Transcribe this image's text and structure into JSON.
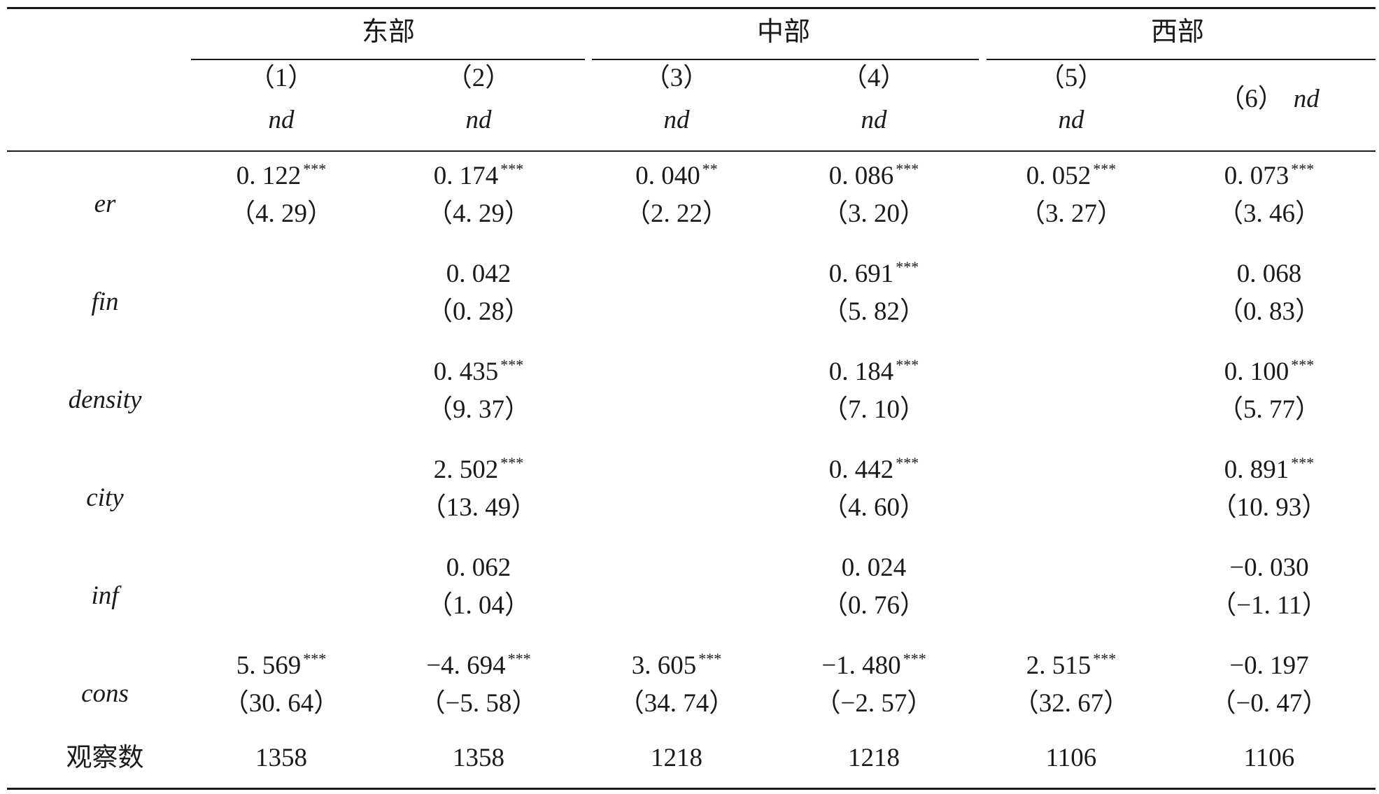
{
  "groups": [
    "东部",
    "中部",
    "西部"
  ],
  "columns": [
    {
      "num": "（1）",
      "var": "nd"
    },
    {
      "num": "（2）",
      "var": "nd"
    },
    {
      "num": "（3）",
      "var": "nd"
    },
    {
      "num": "（4）",
      "var": "nd"
    },
    {
      "num": "（5）",
      "var": "nd"
    },
    {
      "num": "（6）",
      "var": "nd"
    }
  ],
  "rows": [
    {
      "name": "er",
      "cells": [
        {
          "coef": "0. 122",
          "stars": "***",
          "t": "（4. 29）"
        },
        {
          "coef": "0. 174",
          "stars": "***",
          "t": "（4. 29）"
        },
        {
          "coef": "0. 040",
          "stars": "**",
          "t": "（2. 22）"
        },
        {
          "coef": "0. 086",
          "stars": "***",
          "t": "（3. 20）"
        },
        {
          "coef": "0. 052",
          "stars": "***",
          "t": "（3. 27）"
        },
        {
          "coef": "0. 073",
          "stars": "***",
          "t": "（3. 46）"
        }
      ]
    },
    {
      "name": "fin",
      "cells": [
        {
          "coef": "",
          "stars": "",
          "t": ""
        },
        {
          "coef": "0. 042",
          "stars": "",
          "t": "（0. 28）"
        },
        {
          "coef": "",
          "stars": "",
          "t": ""
        },
        {
          "coef": "0. 691",
          "stars": "***",
          "t": "（5. 82）"
        },
        {
          "coef": "",
          "stars": "",
          "t": ""
        },
        {
          "coef": "0. 068",
          "stars": "",
          "t": "（0. 83）"
        }
      ]
    },
    {
      "name": "density",
      "cells": [
        {
          "coef": "",
          "stars": "",
          "t": ""
        },
        {
          "coef": "0. 435",
          "stars": "***",
          "t": "（9. 37）"
        },
        {
          "coef": "",
          "stars": "",
          "t": ""
        },
        {
          "coef": "0. 184",
          "stars": "***",
          "t": "（7. 10）"
        },
        {
          "coef": "",
          "stars": "",
          "t": ""
        },
        {
          "coef": "0. 100",
          "stars": "***",
          "t": "（5. 77）"
        }
      ]
    },
    {
      "name": "city",
      "cells": [
        {
          "coef": "",
          "stars": "",
          "t": ""
        },
        {
          "coef": "2. 502",
          "stars": "***",
          "t": "（13. 49）"
        },
        {
          "coef": "",
          "stars": "",
          "t": ""
        },
        {
          "coef": "0. 442",
          "stars": "***",
          "t": "（4. 60）"
        },
        {
          "coef": "",
          "stars": "",
          "t": ""
        },
        {
          "coef": "0. 891",
          "stars": "***",
          "t": "（10. 93）"
        }
      ]
    },
    {
      "name": "inf",
      "cells": [
        {
          "coef": "",
          "stars": "",
          "t": ""
        },
        {
          "coef": "0. 062",
          "stars": "",
          "t": "（1. 04）"
        },
        {
          "coef": "",
          "stars": "",
          "t": ""
        },
        {
          "coef": "0. 024",
          "stars": "",
          "t": "（0. 76）"
        },
        {
          "coef": "",
          "stars": "",
          "t": ""
        },
        {
          "coef": "−0. 030",
          "stars": "",
          "t": "（−1. 11）"
        }
      ]
    },
    {
      "name": "cons",
      "cells": [
        {
          "coef": "5. 569",
          "stars": "***",
          "t": "（30. 64）"
        },
        {
          "coef": "−4. 694",
          "stars": "***",
          "t": "（−5. 58）"
        },
        {
          "coef": "3. 605",
          "stars": "***",
          "t": "（34. 74）"
        },
        {
          "coef": "−1. 480",
          "stars": "***",
          "t": "（−2. 57）"
        },
        {
          "coef": "2. 515",
          "stars": "***",
          "t": "（32. 67）"
        },
        {
          "coef": "−0. 197",
          "stars": "",
          "t": "（−0. 47）"
        }
      ]
    }
  ],
  "observations": {
    "label": "观察数",
    "values": [
      "1358",
      "1358",
      "1218",
      "1218",
      "1106",
      "1106"
    ]
  }
}
